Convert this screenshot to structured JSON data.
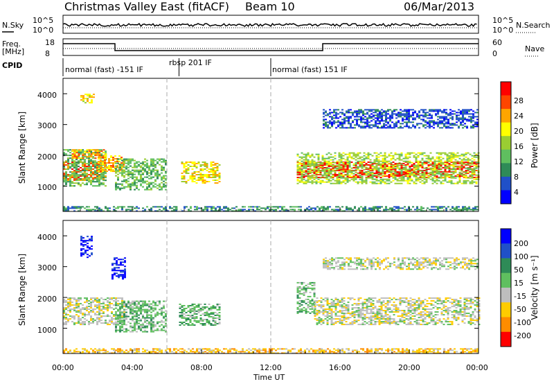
{
  "header": {
    "radar": "Christmas Valley East (fitACF)",
    "beam": "Beam 10",
    "date": "06/Mar/2013"
  },
  "strips": {
    "nsky_label": "N.Sky",
    "nsearch_label": "N.Search",
    "nsky_ticks": [
      "10^5",
      "10^0"
    ],
    "nsearch_ticks": [
      "10^5",
      "10^0"
    ],
    "freq_label_line1": "Freq.",
    "freq_label_line2": "[MHz]",
    "freq_ticks": [
      "18",
      "8"
    ],
    "nave_label": "Nave",
    "nave_ticks": [
      "60",
      "0"
    ],
    "cpid_label": "CPID"
  },
  "modes": [
    {
      "label": "normal (fast) -151 IF",
      "start_hour": 0,
      "end_hour": 6.7
    },
    {
      "label": "rbsp 201 IF",
      "start_hour": 6.7,
      "end_hour": 12.0
    },
    {
      "label": "normal (fast) 151 IF",
      "start_hour": 12.0,
      "end_hour": 24
    }
  ],
  "xaxis": {
    "label": "Time UT",
    "ticks": [
      "00:00",
      "04:00",
      "08:00",
      "12:00",
      "16:00",
      "20:00",
      "00:00"
    ],
    "range_hours": [
      0,
      24
    ]
  },
  "power_panel": {
    "ylabel": "Slant Range [km]",
    "yticks": [
      "4000",
      "3000",
      "2000",
      "1000"
    ],
    "colorbar_label": "Power [dB]",
    "colorbar_ticks": [
      "28",
      "24",
      "20",
      "16",
      "12",
      "8",
      "4"
    ],
    "colors": [
      "#0000ff",
      "#2050c8",
      "#2e8b57",
      "#5fbf5f",
      "#9acd32",
      "#ffff00",
      "#ffa500",
      "#ff4500",
      "#ff0000"
    ]
  },
  "velocity_panel": {
    "ylabel": "Slant Range [km]",
    "yticks": [
      "4000",
      "3000",
      "2000",
      "1000"
    ],
    "colorbar_label": "Velocity [m s⁻¹]",
    "colorbar_ticks": [
      "200",
      "100",
      "50",
      "15",
      "-15",
      "-50",
      "-100",
      "-200"
    ],
    "colors": [
      "#0000ff",
      "#2050c8",
      "#2e8b57",
      "#5fbf5f",
      "#bebebe",
      "#ffcc00",
      "#ff8c00",
      "#ff0000"
    ]
  },
  "chart_data": {
    "type": "heatmap",
    "x_range_hours": [
      0,
      24
    ],
    "y_range_km": [
      180,
      4500
    ],
    "power_regions": [
      {
        "t0": 0.0,
        "t1": 2.5,
        "r0": 1200,
        "r1": 1800,
        "level": 7
      },
      {
        "t0": 0.0,
        "t1": 2.5,
        "r0": 1000,
        "r1": 2200,
        "level": 3
      },
      {
        "t0": 0.5,
        "t1": 2.5,
        "r0": 1900,
        "r1": 2200,
        "level": 6
      },
      {
        "t0": 1.0,
        "t1": 1.8,
        "r0": 3700,
        "r1": 4000,
        "level": 5
      },
      {
        "t0": 2.0,
        "t1": 3.5,
        "r0": 1500,
        "r1": 2000,
        "level": 6
      },
      {
        "t0": 3.0,
        "t1": 6.0,
        "r0": 900,
        "r1": 1900,
        "level": 3
      },
      {
        "t0": 6.7,
        "t1": 9.0,
        "r0": 1100,
        "r1": 1800,
        "level": 5
      },
      {
        "t0": 13.5,
        "t1": 24.0,
        "r0": 1300,
        "r1": 1800,
        "level": 8
      },
      {
        "t0": 13.5,
        "t1": 24.0,
        "r0": 1100,
        "r1": 2100,
        "level": 4
      },
      {
        "t0": 15.0,
        "t1": 24.0,
        "r0": 2900,
        "r1": 3500,
        "level": 1
      },
      {
        "t0": 0.0,
        "t1": 24.0,
        "r0": 180,
        "r1": 350,
        "level": 2
      }
    ],
    "velocity_regions": [
      {
        "t0": 0.0,
        "t1": 3.5,
        "r0": 1100,
        "r1": 2000,
        "level": 4
      },
      {
        "t0": 1.0,
        "t1": 1.7,
        "r0": 3300,
        "r1": 4000,
        "level": 0
      },
      {
        "t0": 2.8,
        "t1": 3.6,
        "r0": 2600,
        "r1": 3300,
        "level": 0
      },
      {
        "t0": 3.0,
        "t1": 6.0,
        "r0": 900,
        "r1": 1900,
        "level": 3
      },
      {
        "t0": 6.7,
        "t1": 9.0,
        "r0": 1100,
        "r1": 1800,
        "level": 3
      },
      {
        "t0": 13.5,
        "t1": 14.5,
        "r0": 1500,
        "r1": 2500,
        "level": 3
      },
      {
        "t0": 14.5,
        "t1": 24.0,
        "r0": 1100,
        "r1": 2000,
        "level": 4
      },
      {
        "t0": 15.0,
        "t1": 24.0,
        "r0": 2900,
        "r1": 3300,
        "level": 4
      },
      {
        "t0": 0.0,
        "t1": 24.0,
        "r0": 180,
        "r1": 350,
        "level": 5
      }
    ]
  }
}
